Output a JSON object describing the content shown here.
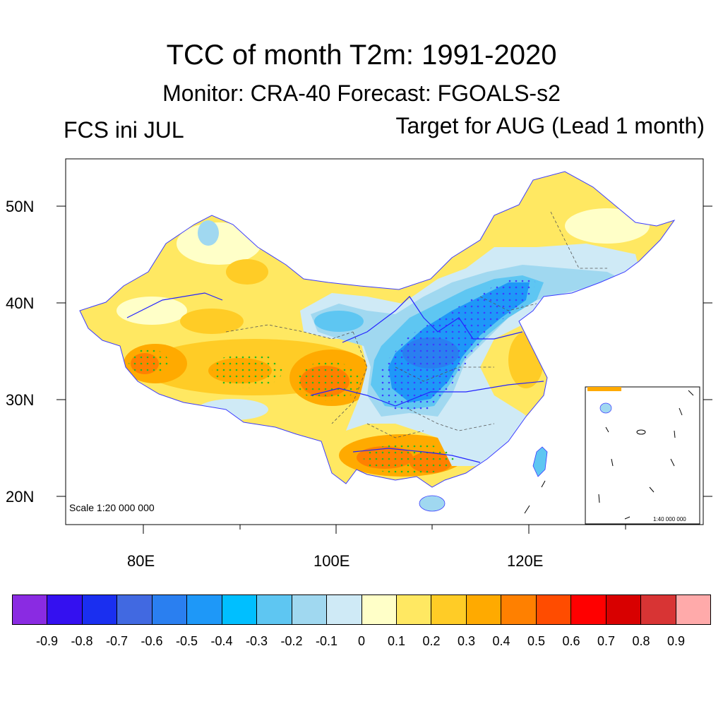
{
  "title": "TCC of month T2m: 1991-2020",
  "subtitle": "Monitor: CRA-40   Forecast: FGOALS-s2",
  "left_label": "FCS ini JUL",
  "right_label": "Target for AUG (Lead 1 month)",
  "scale_main": "Scale 1:20 000 000",
  "scale_inset": "1:40 000 000",
  "lat_labels": [
    "50N",
    "40N",
    "30N",
    "20N"
  ],
  "lon_labels": [
    "80E",
    "100E",
    "120E"
  ],
  "colorbar": {
    "colors": [
      "#8a2be2",
      "#3410f0",
      "#1a2ff0",
      "#4169e1",
      "#2a7ff0",
      "#1e98f8",
      "#00bfff",
      "#5ec6f2",
      "#a0d8f0",
      "#cfeaf6",
      "#ffffc8",
      "#ffe862",
      "#ffcc26",
      "#ffaa00",
      "#ff8000",
      "#ff4c00",
      "#ff0000",
      "#d80000",
      "#d83434",
      "#ffaaaa"
    ],
    "ticks": [
      "-0.9",
      "-0.8",
      "-0.7",
      "-0.6",
      "-0.5",
      "-0.4",
      "-0.3",
      "-0.2",
      "-0.1",
      "0",
      "0.1",
      "0.2",
      "0.3",
      "0.4",
      "0.5",
      "0.6",
      "0.7",
      "0.8",
      "0.9"
    ]
  }
}
